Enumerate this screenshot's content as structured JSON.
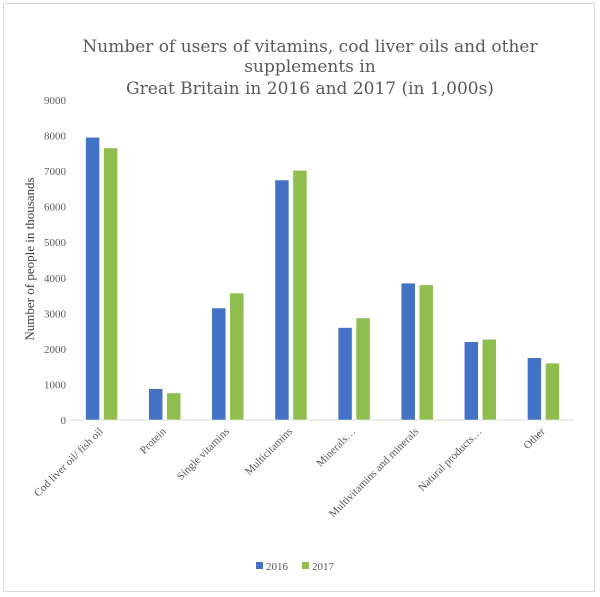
{
  "chart_data": {
    "type": "bar",
    "title_lines": [
      "Number of users of vitamins, cod liver oils and other",
      "supplements in",
      "Great Britain in 2016 and 2017 (in 1,000s)"
    ],
    "xlabel": "",
    "ylabel": "Number of people in thousands",
    "ylim": [
      0,
      9000
    ],
    "yticks": [
      0,
      1000,
      2000,
      3000,
      4000,
      5000,
      6000,
      7000,
      8000,
      9000
    ],
    "grid": false,
    "legend_position": "bottom",
    "categories": [
      "Cod liver oil/ fish oil",
      "Protein",
      "Single vitamins",
      "Multicitamins",
      "Minerals…",
      "Multivitamins and minerals",
      "Natural products…",
      "Other"
    ],
    "series": [
      {
        "name": "2016",
        "color": "#4472c4",
        "values": [
          7950,
          880,
          3150,
          6750,
          2600,
          3850,
          2200,
          1750
        ]
      },
      {
        "name": "2017",
        "color": "#8fbd4e",
        "values": [
          7650,
          760,
          3570,
          7020,
          2870,
          3800,
          2270,
          1600
        ]
      }
    ]
  }
}
